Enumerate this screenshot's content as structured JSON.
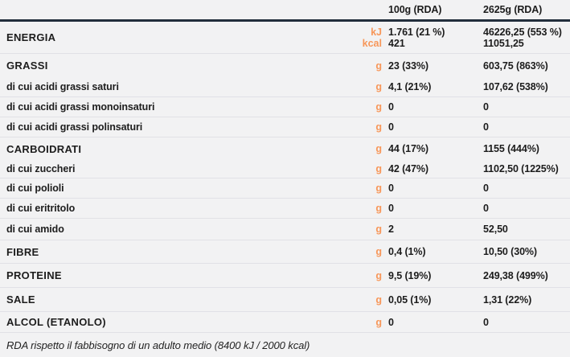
{
  "theme": {
    "background": "#f2f2f3",
    "accent_orange": "#f7975a",
    "header_rule_color": "#222e3c",
    "row_divider_color": "#e1e1e6",
    "text_color": "#1d1d1d"
  },
  "header": {
    "per_100g_label": "100g (RDA)",
    "per_portion_label": "2625g (RDA)"
  },
  "energy_row": {
    "label": "ENERGIA",
    "unit_kj": "kJ",
    "unit_kcal": "kcal",
    "kj_per_100g": "1.761 (21 %)",
    "kcal_per_100g": "421",
    "kj_per_portion": "46226,25 (553 %)",
    "kcal_per_portion": "11051,25"
  },
  "rows": [
    {
      "label": "GRASSI",
      "unit": "g",
      "per_100g": "23 (33%)",
      "per_portion": "603,75 (863%)"
    },
    {
      "label": "di cui acidi grassi saturi",
      "unit": "g",
      "per_100g": "4,1 (21%)",
      "per_portion": "107,62 (538%)"
    },
    {
      "label": "di cui acidi grassi monoinsaturi",
      "unit": "g",
      "per_100g": "0",
      "per_portion": "0"
    },
    {
      "label": "di cui acidi grassi polinsaturi",
      "unit": "g",
      "per_100g": "0",
      "per_portion": "0"
    },
    {
      "label": "CARBOIDRATI",
      "unit": "g",
      "per_100g": "44 (17%)",
      "per_portion": "1155 (444%)"
    },
    {
      "label": "di cui zuccheri",
      "unit": "g",
      "per_100g": "42 (47%)",
      "per_portion": "1102,50 (1225%)"
    },
    {
      "label": "di cui polioli",
      "unit": "g",
      "per_100g": "0",
      "per_portion": "0"
    },
    {
      "label": "di cui eritritolo",
      "unit": "g",
      "per_100g": "0",
      "per_portion": "0"
    },
    {
      "label": "di cui amido",
      "unit": "g",
      "per_100g": "2",
      "per_portion": "52,50"
    },
    {
      "label": "FIBRE",
      "unit": "g",
      "per_100g": "0,4 (1%)",
      "per_portion": "10,50 (30%)"
    },
    {
      "label": "PROTEINE",
      "unit": "g",
      "per_100g": "9,5 (19%)",
      "per_portion": "249,38 (499%)"
    },
    {
      "label": "SALE",
      "unit": "g",
      "per_100g": "0,05 (1%)",
      "per_portion": "1,31 (22%)"
    },
    {
      "label": "ALCOL (ETANOLO)",
      "unit": "g",
      "per_100g": "0",
      "per_portion": "0"
    }
  ],
  "footer": {
    "note": "RDA rispetto il fabbisogno di un adulto medio (8400 kJ / 2000 kcal)"
  }
}
